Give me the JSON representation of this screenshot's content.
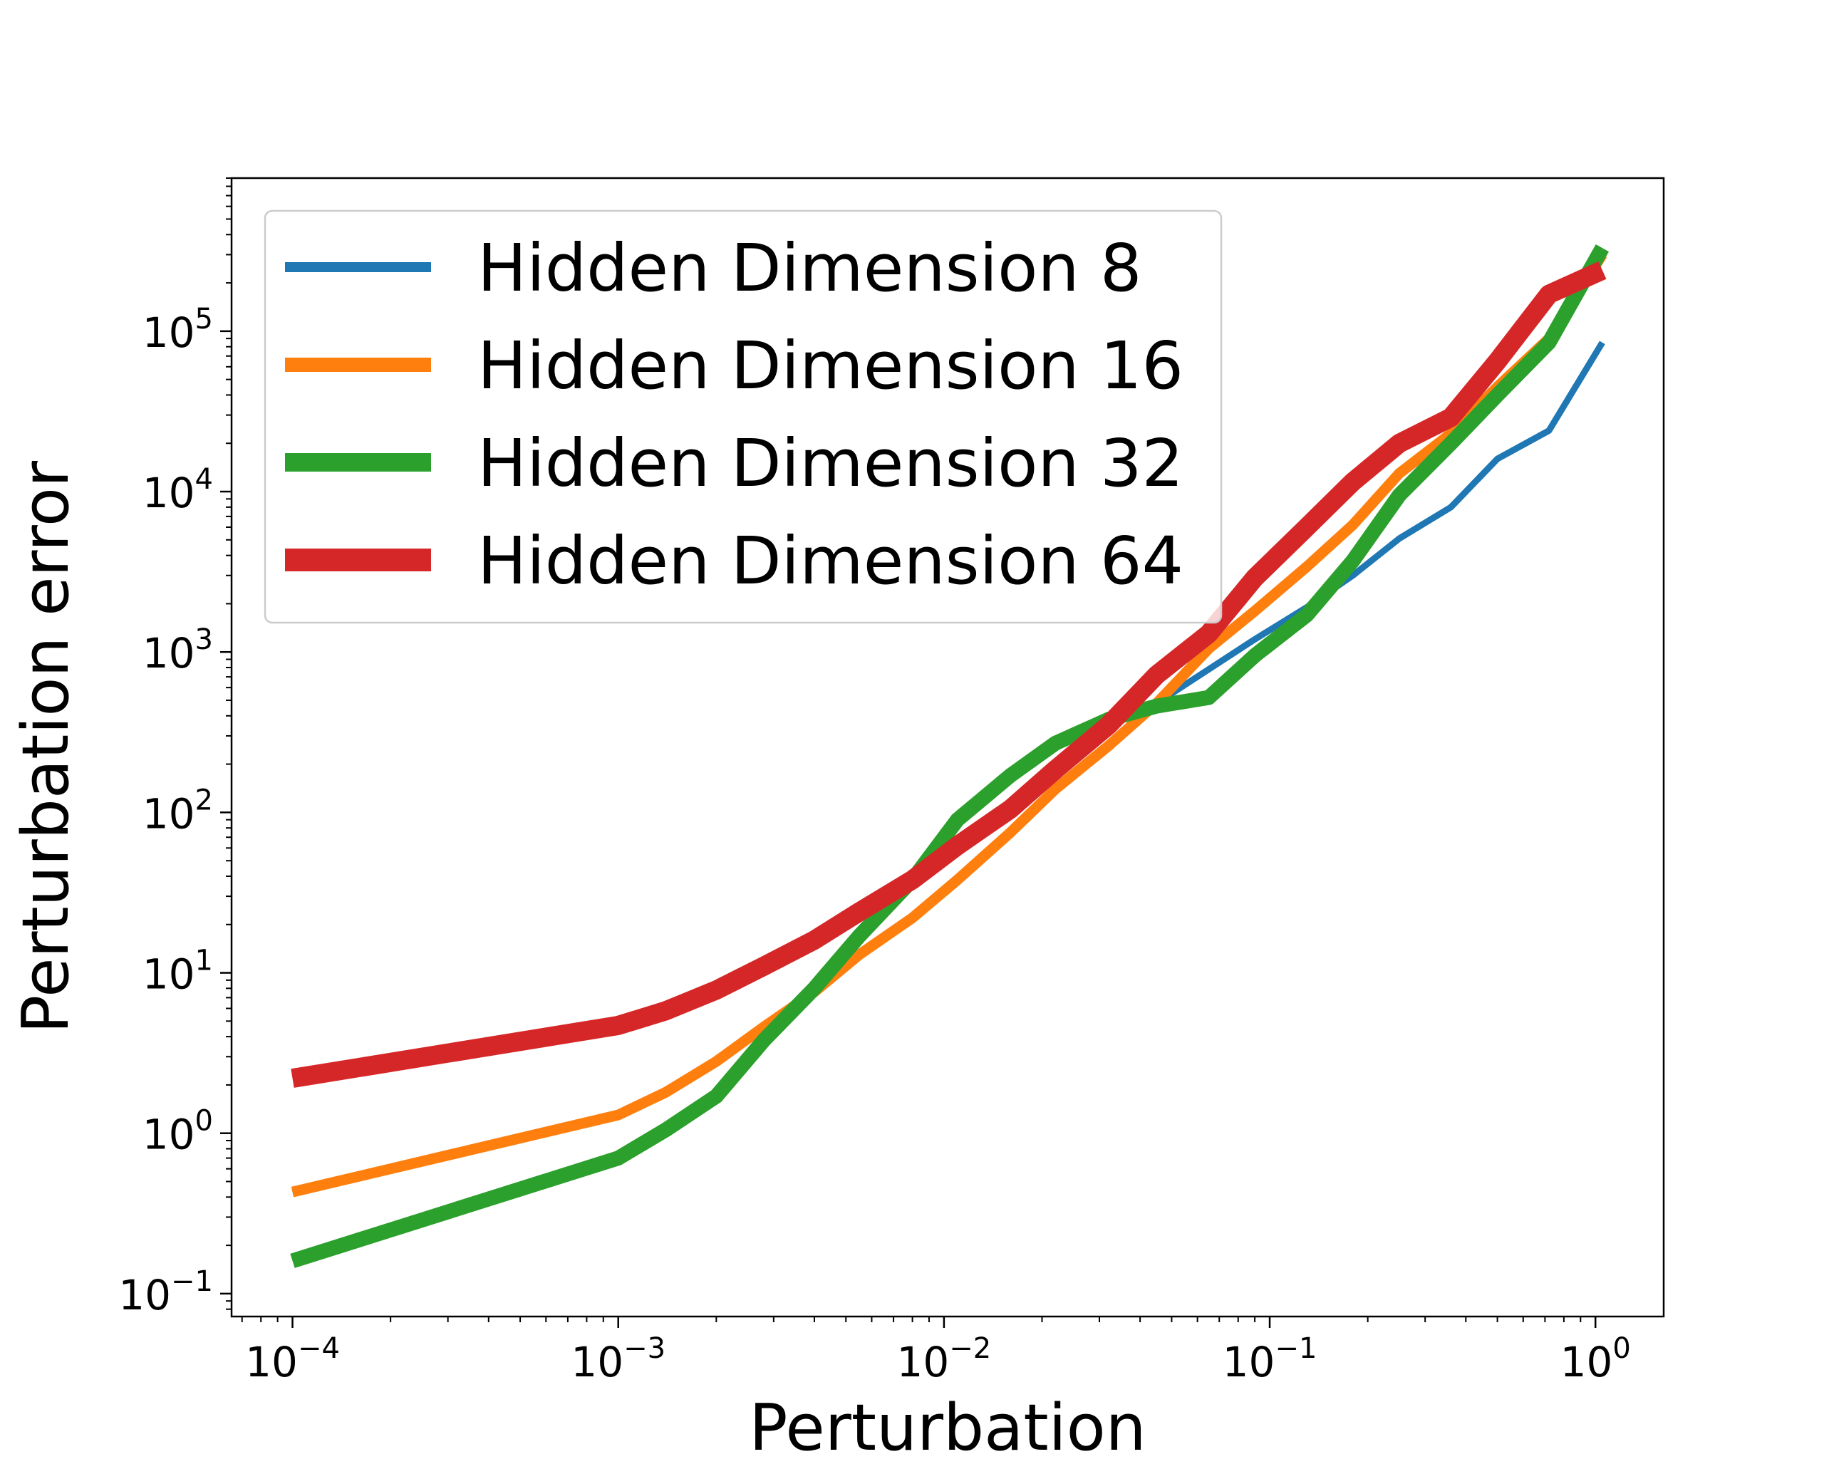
{
  "chart_data": {
    "type": "line",
    "xlabel": "Perturbation",
    "ylabel": "Perturbation error",
    "xscale": "log",
    "yscale": "log",
    "xlim": [
      6.5e-05,
      1.62
    ],
    "ylim": [
      0.072,
      900000
    ],
    "grid": false,
    "legend_position": "top-left",
    "x_ticks": [
      {
        "value": 0.0001,
        "base": "10",
        "exp": "−4"
      },
      {
        "value": 0.001,
        "base": "10",
        "exp": "−3"
      },
      {
        "value": 0.01,
        "base": "10",
        "exp": "−2"
      },
      {
        "value": 0.1,
        "base": "10",
        "exp": "−1"
      },
      {
        "value": 1,
        "base": "10",
        "exp": "0"
      }
    ],
    "y_ticks": [
      {
        "value": 0.1,
        "base": "10",
        "exp": "−1"
      },
      {
        "value": 1,
        "base": "10",
        "exp": "0"
      },
      {
        "value": 10,
        "base": "10",
        "exp": "1"
      },
      {
        "value": 100,
        "base": "10",
        "exp": "2"
      },
      {
        "value": 1000,
        "base": "10",
        "exp": "3"
      },
      {
        "value": 10000,
        "base": "10",
        "exp": "4"
      },
      {
        "value": 100000,
        "base": "10",
        "exp": "5"
      }
    ],
    "series": [
      {
        "name": "Hidden Dimension 8",
        "color": "#1f77b4",
        "width": 9,
        "x": [
          0.0001,
          0.001,
          0.0014,
          0.002,
          0.0028,
          0.004,
          0.0055,
          0.008,
          0.011,
          0.016,
          0.022,
          0.032,
          0.045,
          0.065,
          0.09,
          0.13,
          0.18,
          0.25,
          0.36,
          0.5,
          0.72,
          1.05
        ],
        "y": [
          0.43,
          1.3,
          1.8,
          2.8,
          4.6,
          7.6,
          13,
          22,
          38,
          75,
          140,
          260,
          480,
          780,
          1200,
          1900,
          3000,
          5100,
          8000,
          16000,
          24000,
          85000
        ]
      },
      {
        "name": "Hidden Dimension 16",
        "color": "#ff7f0e",
        "width": 15,
        "x": [
          0.0001,
          0.001,
          0.0014,
          0.002,
          0.0028,
          0.004,
          0.0055,
          0.008,
          0.011,
          0.016,
          0.022,
          0.032,
          0.045,
          0.065,
          0.09,
          0.13,
          0.18,
          0.25,
          0.36,
          0.5,
          0.72,
          1.05
        ],
        "y": [
          0.43,
          1.3,
          1.8,
          2.8,
          4.6,
          7.6,
          13,
          22,
          38,
          75,
          140,
          260,
          480,
          1050,
          1800,
          3400,
          6200,
          13000,
          23000,
          45000,
          90000,
          300000
        ]
      },
      {
        "name": "Hidden Dimension 32",
        "color": "#2ca02c",
        "width": 21,
        "x": [
          0.0001,
          0.001,
          0.0014,
          0.002,
          0.0028,
          0.004,
          0.0055,
          0.008,
          0.011,
          0.016,
          0.022,
          0.032,
          0.045,
          0.065,
          0.09,
          0.13,
          0.18,
          0.25,
          0.36,
          0.5,
          0.72,
          1.05
        ],
        "y": [
          0.16,
          0.7,
          1.05,
          1.7,
          3.8,
          8,
          17,
          38,
          90,
          170,
          270,
          380,
          460,
          520,
          950,
          1700,
          3700,
          9500,
          20000,
          40000,
          85000,
          330000
        ]
      },
      {
        "name": "Hidden Dimension 64",
        "color": "#d62728",
        "width": 27,
        "x": [
          0.0001,
          0.001,
          0.0014,
          0.002,
          0.0028,
          0.004,
          0.0055,
          0.008,
          0.011,
          0.016,
          0.022,
          0.032,
          0.045,
          0.065,
          0.09,
          0.13,
          0.18,
          0.25,
          0.36,
          0.5,
          0.72,
          1.05
        ],
        "y": [
          2.2,
          4.7,
          5.8,
          7.8,
          11,
          16,
          24,
          38,
          62,
          105,
          185,
          350,
          720,
          1300,
          2900,
          6000,
          11500,
          20000,
          29000,
          65000,
          170000,
          240000
        ]
      }
    ]
  }
}
